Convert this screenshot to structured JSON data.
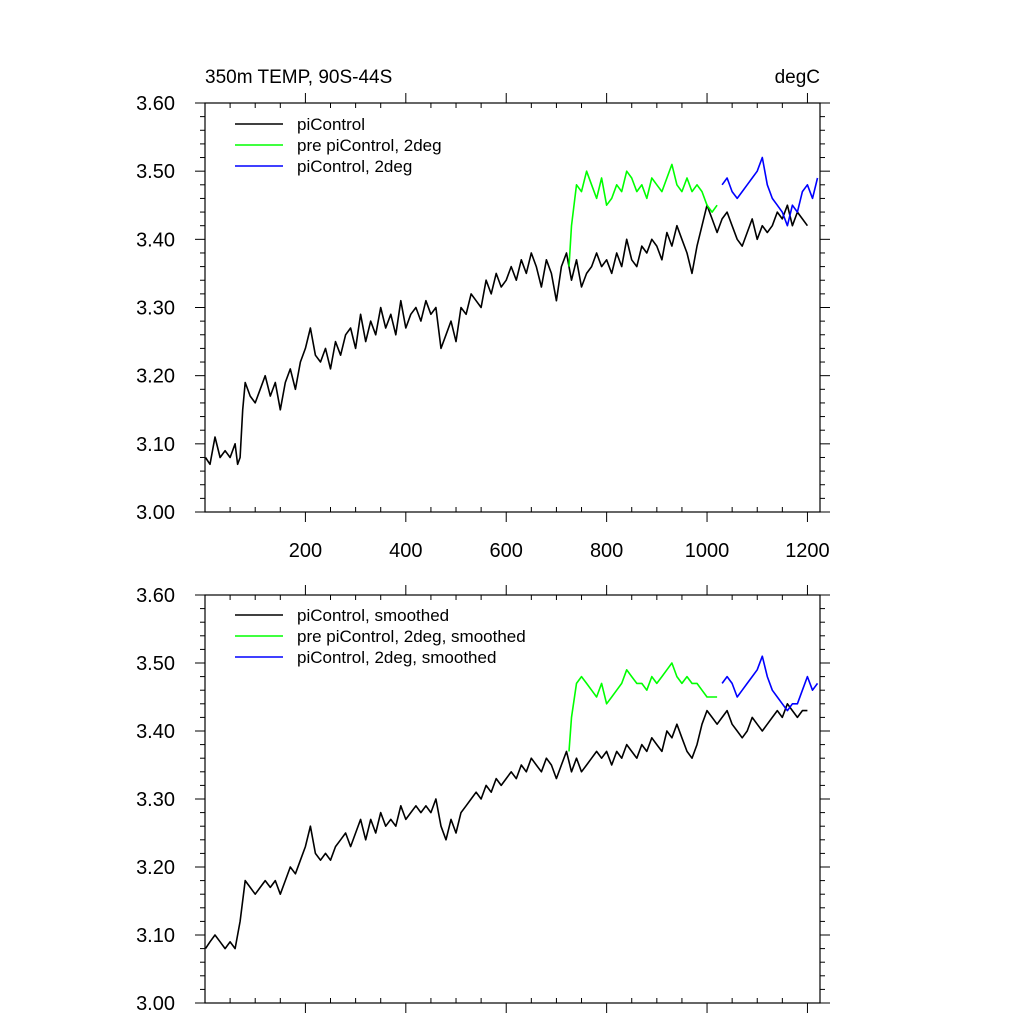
{
  "chart_data": [
    {
      "type": "line",
      "title": "350m TEMP, 90S-44S",
      "units": "degC",
      "xlim": [
        0,
        1225
      ],
      "ylim": [
        3.0,
        3.6
      ],
      "xticks": [
        200,
        400,
        600,
        800,
        1000,
        1200
      ],
      "xtick_labels": [
        "200",
        "400",
        "600",
        "800",
        "1000",
        "1200"
      ],
      "yticks": [
        3.0,
        3.1,
        3.2,
        3.3,
        3.4,
        3.5,
        3.6
      ],
      "ytick_labels": [
        "3.00",
        "3.10",
        "3.20",
        "3.30",
        "3.40",
        "3.50",
        "3.60"
      ],
      "legend_position": "top-left",
      "series": [
        {
          "name": "piControl",
          "color": "#000000",
          "x": [
            1,
            10,
            20,
            30,
            40,
            50,
            60,
            65,
            70,
            75,
            80,
            90,
            100,
            110,
            120,
            130,
            140,
            150,
            160,
            170,
            180,
            190,
            200,
            210,
            220,
            230,
            240,
            250,
            260,
            270,
            280,
            290,
            300,
            310,
            320,
            330,
            340,
            350,
            360,
            370,
            380,
            390,
            400,
            410,
            420,
            430,
            440,
            450,
            460,
            470,
            480,
            490,
            500,
            510,
            520,
            530,
            540,
            550,
            560,
            570,
            580,
            590,
            600,
            610,
            620,
            630,
            640,
            650,
            660,
            670,
            680,
            690,
            700,
            710,
            720,
            730,
            740,
            750,
            760,
            770,
            780,
            790,
            800,
            810,
            820,
            830,
            840,
            850,
            860,
            870,
            880,
            890,
            900,
            910,
            920,
            930,
            940,
            950,
            960,
            970,
            980,
            990,
            1000,
            1010,
            1020,
            1030,
            1040,
            1050,
            1060,
            1070,
            1080,
            1090,
            1100,
            1110,
            1120,
            1130,
            1140,
            1150,
            1160,
            1170,
            1180,
            1190,
            1200
          ],
          "y": [
            3.08,
            3.07,
            3.11,
            3.08,
            3.09,
            3.08,
            3.1,
            3.07,
            3.08,
            3.15,
            3.19,
            3.17,
            3.16,
            3.18,
            3.2,
            3.17,
            3.19,
            3.15,
            3.19,
            3.21,
            3.18,
            3.22,
            3.24,
            3.27,
            3.23,
            3.22,
            3.24,
            3.21,
            3.25,
            3.23,
            3.26,
            3.27,
            3.24,
            3.29,
            3.25,
            3.28,
            3.26,
            3.3,
            3.27,
            3.29,
            3.26,
            3.31,
            3.27,
            3.29,
            3.3,
            3.28,
            3.31,
            3.29,
            3.3,
            3.24,
            3.26,
            3.28,
            3.25,
            3.3,
            3.29,
            3.32,
            3.31,
            3.3,
            3.34,
            3.32,
            3.35,
            3.33,
            3.34,
            3.36,
            3.34,
            3.37,
            3.35,
            3.38,
            3.36,
            3.33,
            3.37,
            3.35,
            3.31,
            3.36,
            3.38,
            3.34,
            3.37,
            3.33,
            3.35,
            3.36,
            3.38,
            3.36,
            3.37,
            3.35,
            3.38,
            3.36,
            3.4,
            3.37,
            3.36,
            3.39,
            3.38,
            3.4,
            3.39,
            3.37,
            3.41,
            3.39,
            3.42,
            3.4,
            3.38,
            3.35,
            3.39,
            3.42,
            3.45,
            3.43,
            3.41,
            3.43,
            3.44,
            3.42,
            3.4,
            3.39,
            3.41,
            3.43,
            3.4,
            3.42,
            3.41,
            3.42,
            3.44,
            3.43,
            3.45,
            3.42,
            3.44,
            3.43,
            3.42
          ]
        },
        {
          "name": "pre piControl, 2deg",
          "color": "#00ff00",
          "x": [
            725,
            730,
            740,
            750,
            760,
            770,
            780,
            790,
            800,
            810,
            820,
            830,
            840,
            850,
            860,
            870,
            880,
            890,
            900,
            910,
            920,
            930,
            940,
            950,
            960,
            970,
            980,
            990,
            1000,
            1010,
            1020
          ],
          "y": [
            3.36,
            3.42,
            3.48,
            3.47,
            3.5,
            3.48,
            3.46,
            3.49,
            3.45,
            3.46,
            3.48,
            3.47,
            3.5,
            3.49,
            3.47,
            3.48,
            3.46,
            3.49,
            3.48,
            3.47,
            3.49,
            3.51,
            3.48,
            3.47,
            3.49,
            3.47,
            3.48,
            3.47,
            3.45,
            3.44,
            3.45
          ]
        },
        {
          "name": "piControl, 2deg",
          "color": "#0000ff",
          "x": [
            1030,
            1040,
            1050,
            1060,
            1070,
            1080,
            1090,
            1100,
            1110,
            1120,
            1130,
            1140,
            1150,
            1160,
            1170,
            1180,
            1190,
            1200,
            1210,
            1220
          ],
          "y": [
            3.48,
            3.49,
            3.47,
            3.46,
            3.47,
            3.48,
            3.49,
            3.5,
            3.52,
            3.48,
            3.46,
            3.45,
            3.44,
            3.42,
            3.45,
            3.44,
            3.47,
            3.48,
            3.46,
            3.49
          ]
        }
      ]
    },
    {
      "type": "line",
      "title": "",
      "xlim": [
        0,
        1225
      ],
      "ylim": [
        3.0,
        3.6
      ],
      "xticks": [
        200,
        400,
        600,
        800,
        1000,
        1200
      ],
      "yticks": [
        3.0,
        3.1,
        3.2,
        3.3,
        3.4,
        3.5,
        3.6
      ],
      "ytick_labels": [
        "3.00",
        "3.10",
        "3.20",
        "3.30",
        "3.40",
        "3.50",
        "3.60"
      ],
      "legend_position": "top-left",
      "series": [
        {
          "name": "piControl, smoothed",
          "color": "#000000",
          "x": [
            1,
            10,
            20,
            30,
            40,
            50,
            60,
            70,
            80,
            90,
            100,
            110,
            120,
            130,
            140,
            150,
            160,
            170,
            180,
            190,
            200,
            210,
            220,
            230,
            240,
            250,
            260,
            270,
            280,
            290,
            300,
            310,
            320,
            330,
            340,
            350,
            360,
            370,
            380,
            390,
            400,
            410,
            420,
            430,
            440,
            450,
            460,
            470,
            480,
            490,
            500,
            510,
            520,
            530,
            540,
            550,
            560,
            570,
            580,
            590,
            600,
            610,
            620,
            630,
            640,
            650,
            660,
            670,
            680,
            690,
            700,
            710,
            720,
            730,
            740,
            750,
            760,
            770,
            780,
            790,
            800,
            810,
            820,
            830,
            840,
            850,
            860,
            870,
            880,
            890,
            900,
            910,
            920,
            930,
            940,
            950,
            960,
            970,
            980,
            990,
            1000,
            1010,
            1020,
            1030,
            1040,
            1050,
            1060,
            1070,
            1080,
            1090,
            1100,
            1110,
            1120,
            1130,
            1140,
            1150,
            1160,
            1170,
            1180,
            1190,
            1200
          ],
          "y": [
            3.08,
            3.09,
            3.1,
            3.09,
            3.08,
            3.09,
            3.08,
            3.12,
            3.18,
            3.17,
            3.16,
            3.17,
            3.18,
            3.17,
            3.18,
            3.16,
            3.18,
            3.2,
            3.19,
            3.21,
            3.23,
            3.26,
            3.22,
            3.21,
            3.22,
            3.21,
            3.23,
            3.24,
            3.25,
            3.23,
            3.25,
            3.27,
            3.24,
            3.27,
            3.25,
            3.28,
            3.26,
            3.27,
            3.26,
            3.29,
            3.27,
            3.28,
            3.29,
            3.28,
            3.29,
            3.28,
            3.3,
            3.26,
            3.24,
            3.27,
            3.25,
            3.28,
            3.29,
            3.3,
            3.31,
            3.3,
            3.32,
            3.31,
            3.33,
            3.32,
            3.33,
            3.34,
            3.33,
            3.35,
            3.34,
            3.36,
            3.35,
            3.34,
            3.36,
            3.35,
            3.33,
            3.35,
            3.37,
            3.34,
            3.36,
            3.34,
            3.35,
            3.36,
            3.37,
            3.36,
            3.37,
            3.35,
            3.37,
            3.36,
            3.38,
            3.37,
            3.36,
            3.38,
            3.37,
            3.39,
            3.38,
            3.37,
            3.4,
            3.39,
            3.41,
            3.39,
            3.37,
            3.36,
            3.38,
            3.41,
            3.43,
            3.42,
            3.41,
            3.42,
            3.43,
            3.41,
            3.4,
            3.39,
            3.4,
            3.42,
            3.41,
            3.4,
            3.41,
            3.42,
            3.43,
            3.42,
            3.44,
            3.43,
            3.42,
            3.43,
            3.43
          ]
        },
        {
          "name": "pre piControl, 2deg, smoothed",
          "color": "#00ff00",
          "x": [
            725,
            730,
            740,
            750,
            760,
            770,
            780,
            790,
            800,
            810,
            820,
            830,
            840,
            850,
            860,
            870,
            880,
            890,
            900,
            910,
            920,
            930,
            940,
            950,
            960,
            970,
            980,
            990,
            1000,
            1010,
            1020
          ],
          "y": [
            3.37,
            3.42,
            3.47,
            3.48,
            3.47,
            3.46,
            3.45,
            3.47,
            3.44,
            3.45,
            3.46,
            3.47,
            3.49,
            3.48,
            3.47,
            3.47,
            3.46,
            3.48,
            3.47,
            3.48,
            3.49,
            3.5,
            3.48,
            3.47,
            3.48,
            3.47,
            3.47,
            3.46,
            3.45,
            3.45,
            3.45
          ]
        },
        {
          "name": "piControl, 2deg, smoothed",
          "color": "#0000ff",
          "x": [
            1030,
            1040,
            1050,
            1060,
            1070,
            1080,
            1090,
            1100,
            1110,
            1120,
            1130,
            1140,
            1150,
            1160,
            1170,
            1180,
            1190,
            1200,
            1210,
            1220
          ],
          "y": [
            3.47,
            3.48,
            3.47,
            3.45,
            3.46,
            3.47,
            3.48,
            3.49,
            3.51,
            3.48,
            3.46,
            3.45,
            3.44,
            3.43,
            3.44,
            3.44,
            3.46,
            3.48,
            3.46,
            3.47
          ]
        }
      ]
    }
  ]
}
